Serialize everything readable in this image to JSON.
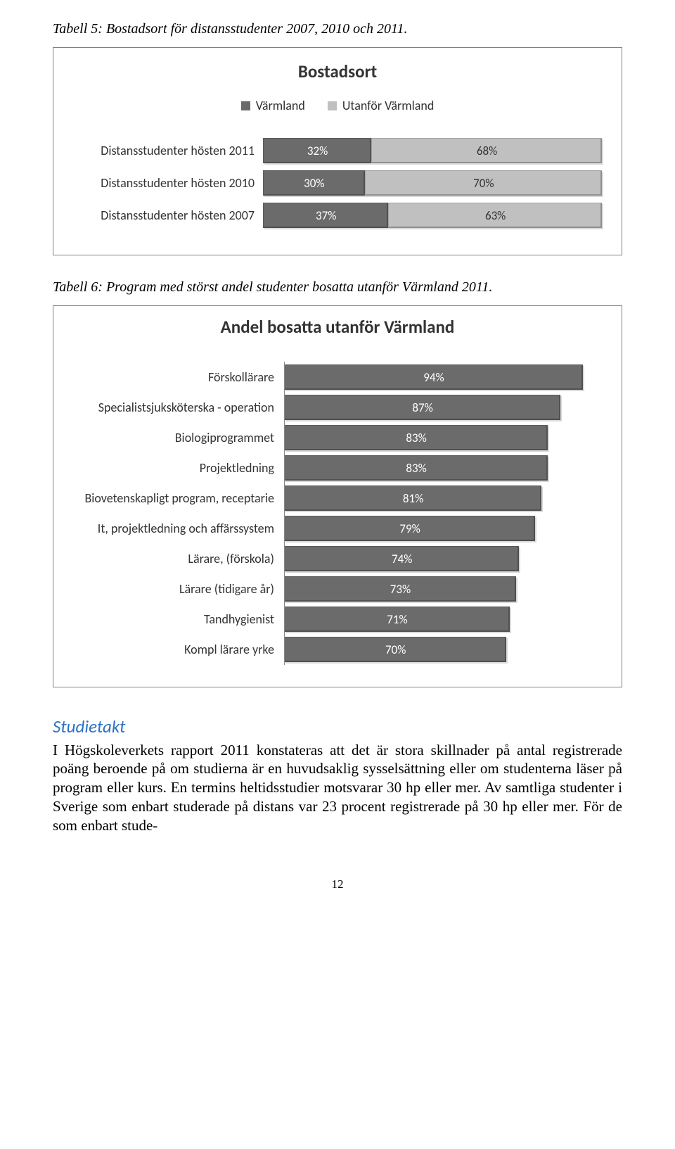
{
  "caption1": "Tabell 5: Bostadsort för distansstudenter 2007, 2010 och 2011.",
  "caption2": "Tabell 6: Program med störst andel studenter bosatta utanför Värmland 2011.",
  "chart1": {
    "title": "Bostadsort",
    "legend": [
      {
        "label": "Värmland",
        "color": "#6b6b6b"
      },
      {
        "label": "Utanför Värmland",
        "color": "#c0c0c0"
      }
    ],
    "rows": [
      {
        "label": "Distansstudenter hösten 2011",
        "a": 32,
        "b": 68
      },
      {
        "label": "Distansstudenter hösten 2010",
        "a": 30,
        "b": 70
      },
      {
        "label": "Distansstudenter hösten 2007",
        "a": 37,
        "b": 63
      }
    ],
    "color_a": "#6b6b6b",
    "color_b": "#c0c0c0"
  },
  "chart2": {
    "title": "Andel bosatta utanför Värmland",
    "bar_color": "#6b6b6b",
    "max": 100,
    "rows": [
      {
        "label": "Förskollärare",
        "value": 94
      },
      {
        "label": "Specialistsjuksköterska - operation",
        "value": 87
      },
      {
        "label": "Biologiprogrammet",
        "value": 83
      },
      {
        "label": "Projektledning",
        "value": 83
      },
      {
        "label": "Biovetenskapligt program, receptarie",
        "value": 81
      },
      {
        "label": "It, projektledning och affärssystem",
        "value": 79
      },
      {
        "label": "Lärare, (förskola)",
        "value": 74
      },
      {
        "label": "Lärare (tidigare år)",
        "value": 73
      },
      {
        "label": "Tandhygienist",
        "value": 71
      },
      {
        "label": "Kompl  lärare yrke",
        "value": 70
      }
    ]
  },
  "section_head": "Studietakt",
  "body_text": "I Högskoleverkets rapport 2011 konstateras att det är stora skillnader på antal registrerade poäng beroende på om studierna är en huvudsaklig sysselsättning eller om studenterna läser på program eller kurs. En termins heltidsstudier motsvarar 30 hp eller mer. Av samtliga studenter i Sverige som enbart studerade på distans var 23 procent registrerade på 30 hp eller mer. För de som enbart stude-",
  "page_number": "12"
}
